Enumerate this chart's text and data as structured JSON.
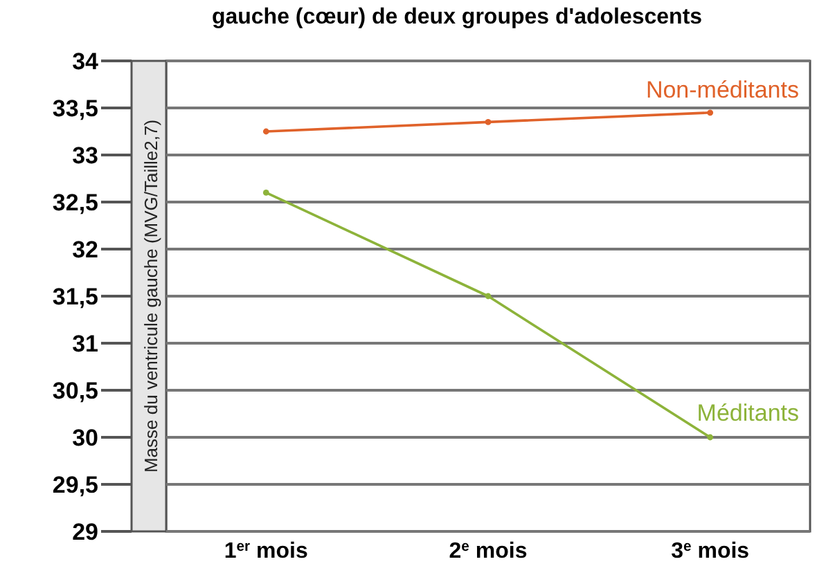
{
  "chart_data": {
    "type": "line",
    "title": "gauche (cœur) de deux groupes d'adolescents",
    "ylabel": "Masse du ventricule gauche (MVG/Taille2,7)",
    "categories": [
      "1$^{er}$ mois",
      "2$^{e}$ mois",
      "3$^{e}$ mois"
    ],
    "series": [
      {
        "name": "Non-méditants",
        "color": "#e0622a",
        "values": [
          33.25,
          33.35,
          33.45
        ]
      },
      {
        "name": "Méditants",
        "color": "#8db33a",
        "values": [
          32.6,
          31.5,
          30.0
        ]
      }
    ],
    "ylim": [
      29,
      34
    ],
    "yticks": [
      29,
      {
        "value": 29.5,
        "label": "29,5"
      },
      30,
      {
        "value": 30.5,
        "label": "30,5"
      },
      31,
      {
        "value": 31.5,
        "label": "31,5"
      },
      32,
      {
        "value": 32.5,
        "label": "32,5"
      },
      33,
      {
        "value": 33.5,
        "label": "33,5"
      },
      34
    ],
    "grid": "y",
    "marker": "circle"
  }
}
